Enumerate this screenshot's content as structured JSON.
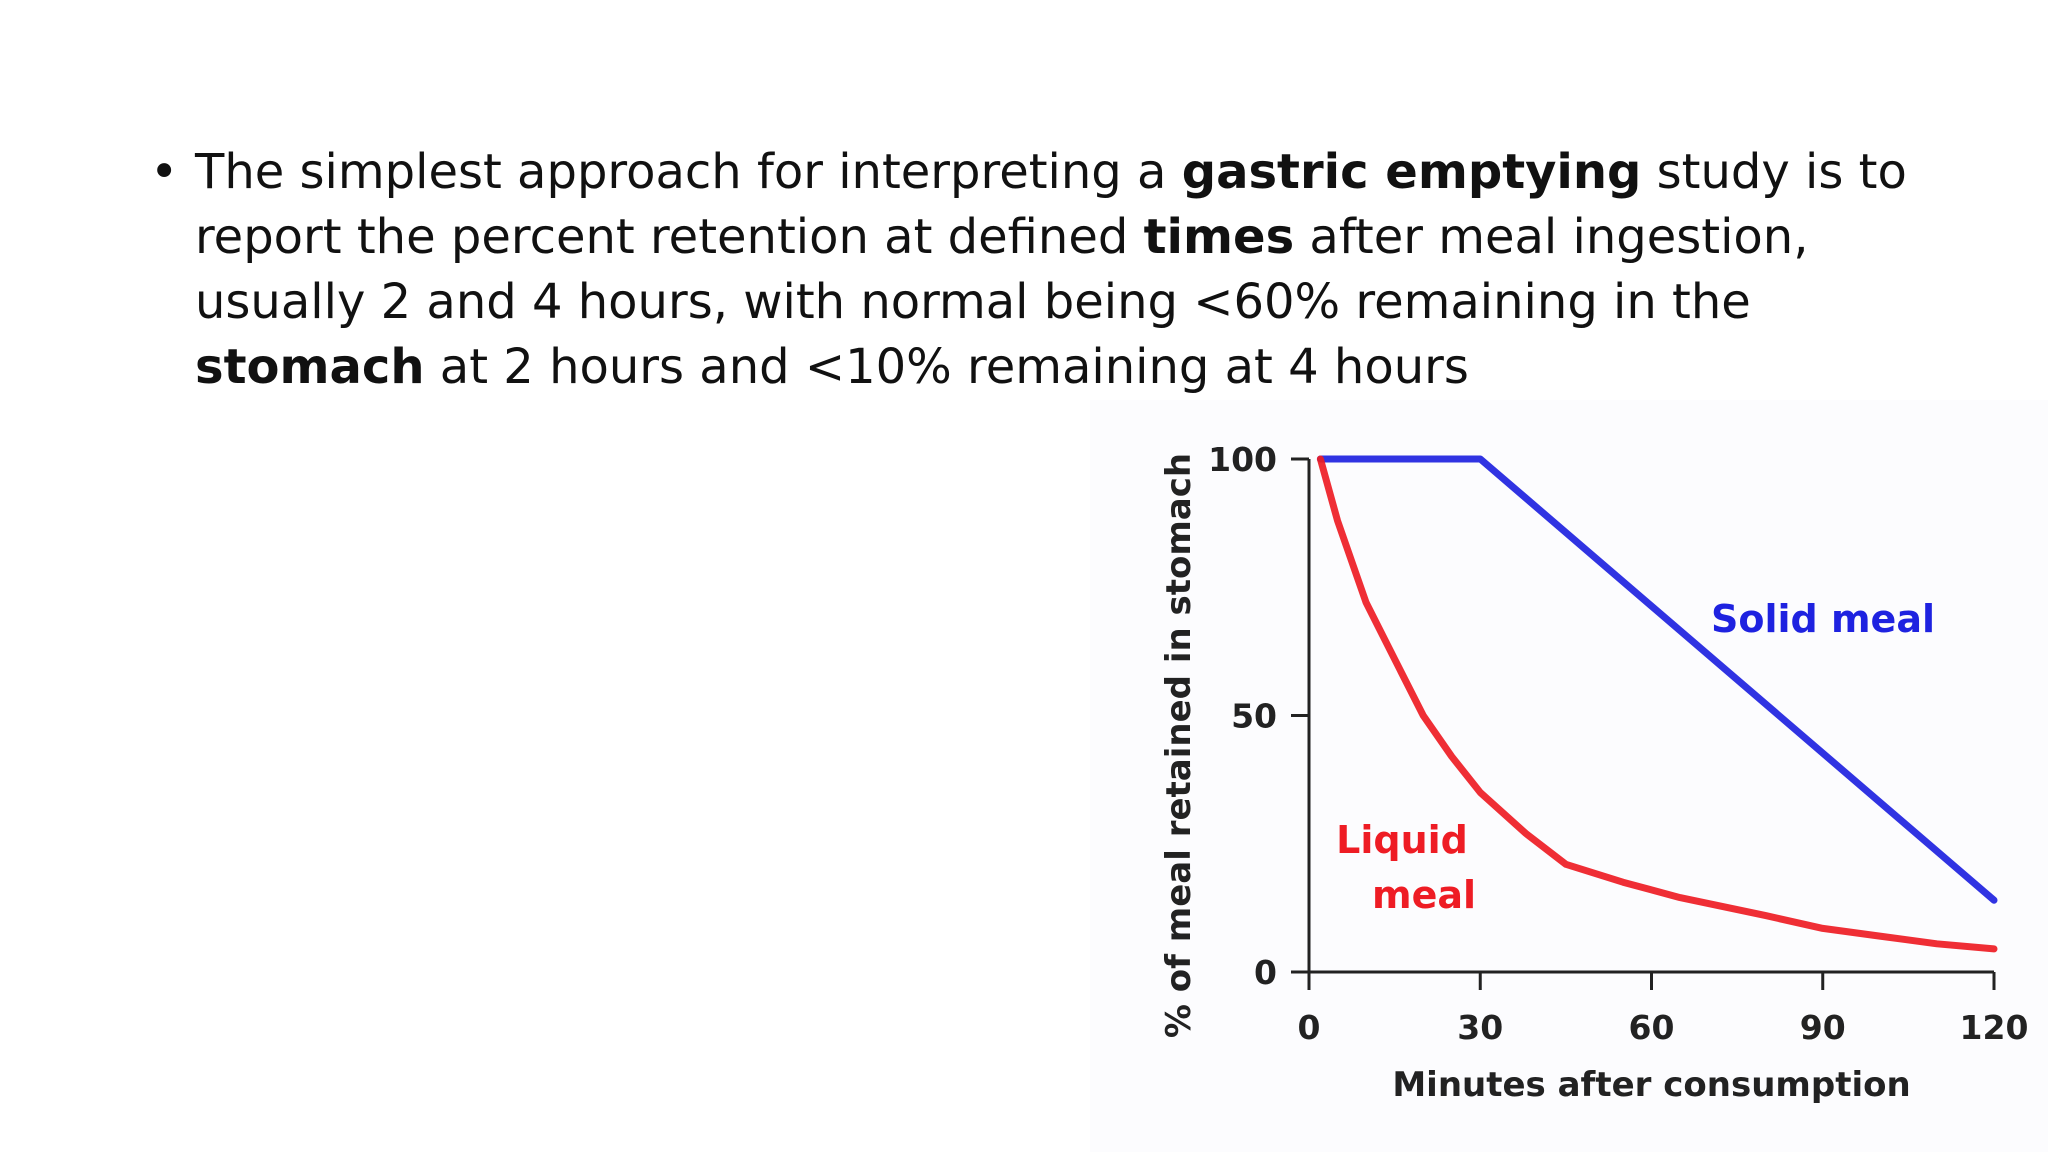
{
  "slide": {
    "bullet_marker": "•",
    "bullet_parts": [
      {
        "text": "The simplest approach for interpreting a ",
        "bold": false
      },
      {
        "text": "gastric emptying",
        "bold": true
      },
      {
        "text": " study is to report the percent retention at defined ",
        "bold": false
      },
      {
        "text": "times",
        "bold": true
      },
      {
        "text": " after meal ingestion, usually 2 and 4 hours, with normal being <60% remaining in the ",
        "bold": false
      },
      {
        "text": "stomach",
        "bold": true
      },
      {
        "text": " at 2 hours and <10% remaining at 4 hours",
        "bold": false
      }
    ]
  },
  "chart_data": {
    "type": "line",
    "title": "",
    "xlabel": "Minutes after consumption",
    "ylabel": "% of meal retained in stomach",
    "xlim": [
      0,
      120
    ],
    "ylim": [
      0,
      100
    ],
    "x_ticks": [
      0,
      30,
      60,
      90,
      120
    ],
    "y_ticks": [
      0,
      50,
      100
    ],
    "grid": false,
    "series": [
      {
        "name": "Solid meal",
        "label_lines": [
          "Solid meal"
        ],
        "color": "#1e22e0",
        "x": [
          2,
          30,
          120
        ],
        "y": [
          100,
          100,
          14
        ]
      },
      {
        "name": "Liquid meal",
        "label_lines": [
          "Liquid",
          "meal"
        ],
        "color": "#ee1c24",
        "x": [
          2,
          5,
          10,
          15,
          20,
          25,
          30,
          38,
          45,
          55,
          65,
          80,
          90,
          100,
          110,
          120
        ],
        "y": [
          100,
          88,
          72,
          61,
          50,
          42,
          35,
          27,
          21,
          17.5,
          14.5,
          11,
          8.5,
          7,
          5.5,
          4.5
        ]
      }
    ]
  }
}
